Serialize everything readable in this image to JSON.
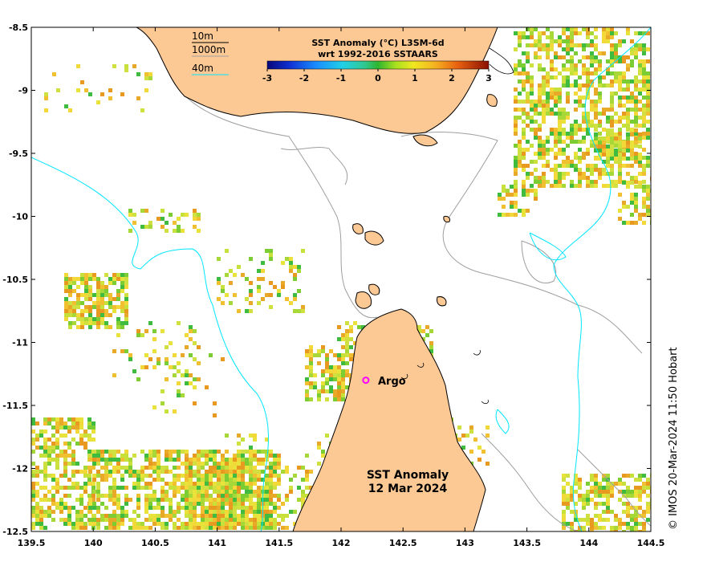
{
  "map": {
    "lon_ticks": [
      "139.5",
      "140",
      "140.5",
      "141",
      "141.5",
      "142",
      "142.5",
      "143",
      "143.5",
      "144",
      "144.5"
    ],
    "lat_ticks": [
      "-8.5",
      "-9",
      "-9.5",
      "-10",
      "-10.5",
      "-11",
      "-11.5",
      "-12",
      "-12.5"
    ],
    "lon_range": [
      139.5,
      144.5
    ],
    "lat_range": [
      -12.5,
      -8.5
    ],
    "colorbar": {
      "title_line1": "SST Anomaly (°C) L3SM-6d",
      "title_line2": "wrt 1992-2016 SSTAARS",
      "ticks": [
        "-3",
        "-2",
        "-1",
        "0",
        "1",
        "2",
        "3"
      ],
      "range": [
        -3,
        3
      ]
    },
    "depth_legend": {
      "item1": "10m",
      "item2": "1000m",
      "item3": "40m",
      "color_10m": "#000000",
      "color_1000m": "#00e5ff",
      "color_40m": "#9e9e9e"
    },
    "argo": {
      "label": "Argo",
      "lon": 142.2,
      "lat": -11.3,
      "color": "#ff00ff"
    },
    "caption_line1": "SST Anomaly",
    "caption_line2": "12 Mar 2024",
    "copyright": "© IMOS 20-Mar-2024 11:50 Hobart",
    "colors": {
      "land": "#fcc995",
      "coastline": "#000000",
      "shelf_1000m": "#00e5ff",
      "contour_40m": "#9e9e9e"
    }
  }
}
